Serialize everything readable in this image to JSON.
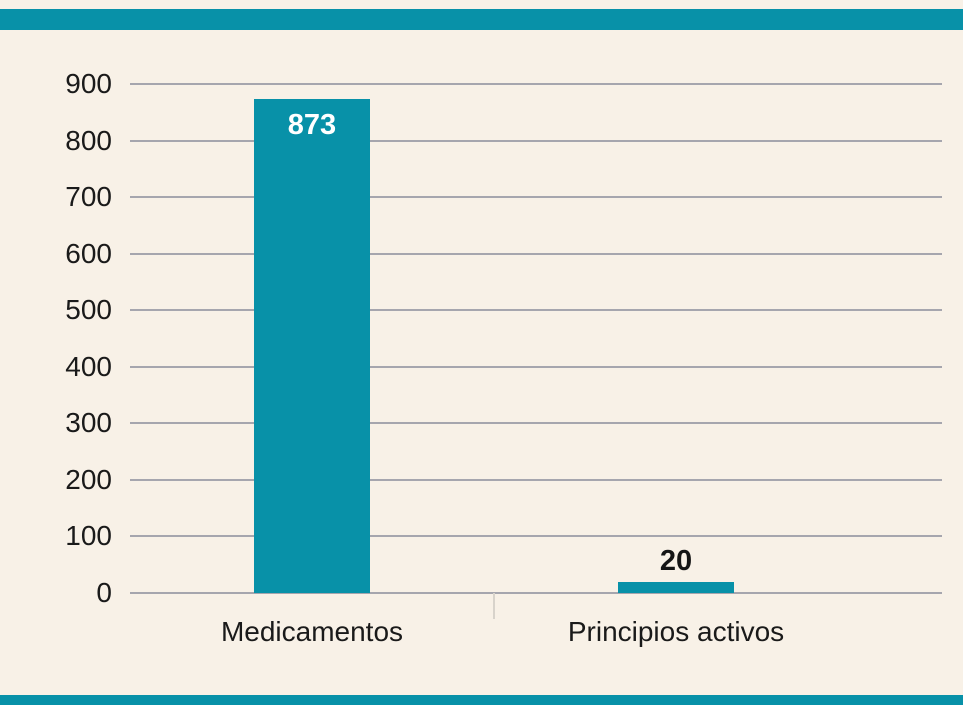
{
  "page": {
    "background_color": "#f8f1e7",
    "accent_color": "#0891a8"
  },
  "chart_data": {
    "type": "bar",
    "categories": [
      "Medicamentos",
      "Principios activos"
    ],
    "values": [
      873,
      20
    ],
    "title": "",
    "xlabel": "",
    "ylabel": "",
    "ylim": [
      0,
      900
    ],
    "yticks": [
      0,
      100,
      200,
      300,
      400,
      500,
      600,
      700,
      800,
      900
    ],
    "grid": true,
    "legend": false,
    "bar_color": "#0891a8",
    "gridline_color": "#a6a6ae",
    "value_label_inside_color": "#ffffff",
    "value_label_outside_color": "#151515"
  }
}
